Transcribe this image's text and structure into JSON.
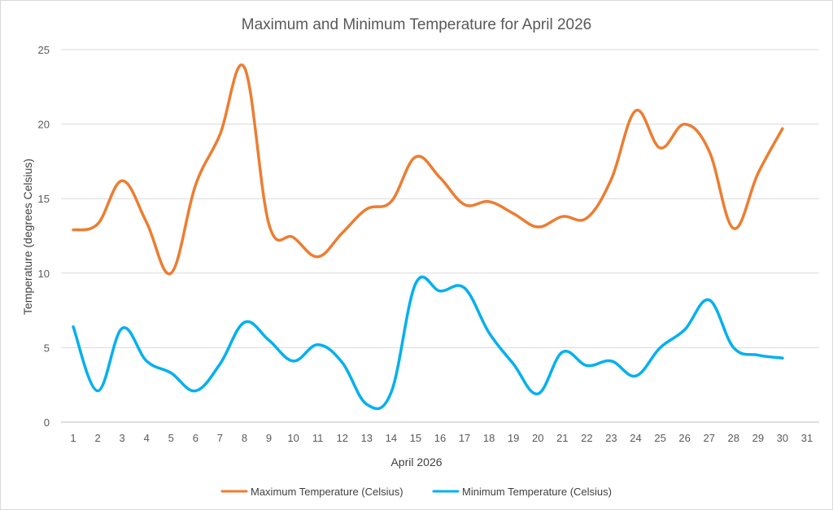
{
  "chart_data": {
    "type": "line",
    "title": "Maximum and Minimum Temperature for April 2026",
    "xlabel": "April 2026",
    "ylabel": "Temperature (degrees Celsius)",
    "x_ticks": [
      1,
      2,
      3,
      4,
      5,
      6,
      7,
      8,
      9,
      10,
      11,
      12,
      13,
      14,
      15,
      16,
      17,
      18,
      19,
      20,
      21,
      22,
      23,
      24,
      25,
      26,
      27,
      28,
      29,
      30,
      31
    ],
    "ylim": [
      0,
      25
    ],
    "y_ticks": [
      0,
      5,
      10,
      15,
      20,
      25
    ],
    "grid": true,
    "legend_position": "bottom",
    "series": [
      {
        "name": "Maximum Temperature (Celsius)",
        "color": "#ED7D31",
        "x": [
          1,
          2,
          3,
          4,
          5,
          6,
          7,
          8,
          9,
          10,
          11,
          12,
          13,
          14,
          15,
          16,
          17,
          18,
          19,
          20,
          21,
          22,
          23,
          24,
          25,
          26,
          27,
          28,
          29,
          30
        ],
        "values": [
          12.9,
          13.3,
          16.2,
          13.4,
          10.0,
          15.9,
          19.3,
          23.8,
          13.3,
          12.4,
          11.1,
          12.7,
          14.3,
          14.8,
          17.8,
          16.4,
          14.6,
          14.8,
          14.0,
          13.1,
          13.8,
          13.7,
          16.3,
          20.9,
          18.4,
          20.0,
          18.2,
          13.0,
          16.7,
          19.7
        ]
      },
      {
        "name": "Minimum Temperature (Celsius)",
        "color": "#00B0F0",
        "x": [
          1,
          2,
          3,
          4,
          5,
          6,
          7,
          8,
          9,
          10,
          11,
          12,
          13,
          14,
          15,
          16,
          17,
          18,
          19,
          20,
          21,
          22,
          23,
          24,
          25,
          26,
          27,
          28,
          29,
          30
        ],
        "values": [
          6.4,
          2.1,
          6.3,
          4.1,
          3.3,
          2.1,
          3.9,
          6.7,
          5.5,
          4.1,
          5.2,
          4.0,
          1.2,
          2.0,
          9.3,
          8.8,
          9.0,
          6.0,
          3.9,
          1.9,
          4.7,
          3.8,
          4.1,
          3.1,
          5.0,
          6.2,
          8.2,
          5.0,
          4.5,
          4.3
        ]
      }
    ]
  }
}
